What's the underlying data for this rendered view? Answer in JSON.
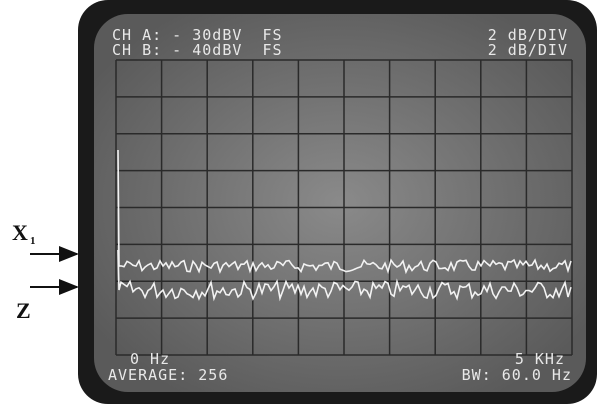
{
  "screen": {
    "ch_a": "CH A: - 30dBV  FS",
    "ch_a_scale": "2 dB/DIV",
    "ch_b": "CH B: - 40dBV  FS",
    "ch_b_scale": "2 dB/DIV",
    "start_freq": "0 Hz",
    "stop_freq": "5 KHz",
    "average": "AVERAGE: 256",
    "bandwidth": "BW: 60.0 Hz"
  },
  "labels": {
    "x_main": "X",
    "x_sub": "1",
    "z": "Z"
  }
}
